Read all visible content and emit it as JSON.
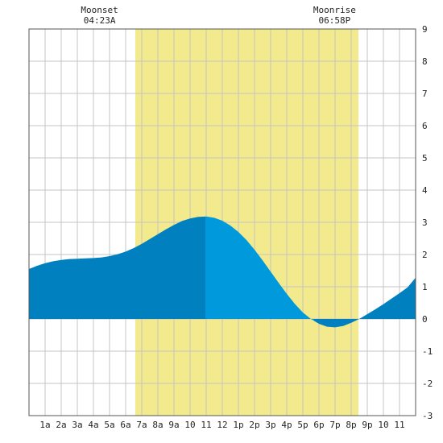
{
  "chart_data": {
    "type": "area",
    "title": "",
    "xlabel": "",
    "ylabel": "",
    "xlim": [
      0,
      24
    ],
    "ylim": [
      -3,
      9
    ],
    "grid": true,
    "y_ticks": [
      -3,
      -2,
      -1,
      0,
      1,
      2,
      3,
      4,
      5,
      6,
      7,
      8,
      9
    ],
    "x_tick_labels": [
      "1a",
      "2a",
      "3a",
      "4a",
      "5a",
      "6a",
      "7a",
      "8a",
      "9a",
      "10",
      "11",
      "12",
      "1p",
      "2p",
      "3p",
      "4p",
      "5p",
      "6p",
      "7p",
      "8p",
      "9p",
      "10",
      "11"
    ],
    "x_tick_positions": [
      1,
      2,
      3,
      4,
      5,
      6,
      7,
      8,
      9,
      10,
      11,
      12,
      13,
      14,
      15,
      16,
      17,
      18,
      19,
      20,
      21,
      22,
      23
    ],
    "daylight": {
      "start": 6.6,
      "end": 20.45,
      "color": "#f2ea8c"
    },
    "highlight": {
      "start": 10.95,
      "end": 17.7,
      "color": "#0099db"
    },
    "tide_color": "#0080bf",
    "series": [
      {
        "x": [
          0,
          0.5,
          1,
          1.5,
          2,
          2.5,
          3,
          3.5,
          4,
          4.5,
          5,
          5.5,
          6,
          6.5,
          7,
          7.5,
          8,
          8.5,
          9,
          9.5,
          10,
          10.5,
          11,
          11.5,
          12,
          12.5,
          13,
          13.5,
          14,
          14.5,
          15,
          15.5,
          16,
          16.5,
          17,
          17.5,
          18,
          18.5,
          19,
          19.5,
          20,
          20.5,
          21,
          21.5,
          22,
          22.5,
          23,
          23.5,
          24
        ],
        "y": [
          1.55,
          1.65,
          1.73,
          1.79,
          1.83,
          1.86,
          1.87,
          1.88,
          1.89,
          1.91,
          1.95,
          2.01,
          2.09,
          2.2,
          2.33,
          2.48,
          2.63,
          2.78,
          2.92,
          3.04,
          3.12,
          3.17,
          3.18,
          3.14,
          3.05,
          2.9,
          2.7,
          2.45,
          2.15,
          1.82,
          1.47,
          1.12,
          0.78,
          0.47,
          0.2,
          0.0,
          -0.15,
          -0.24,
          -0.26,
          -0.22,
          -0.12,
          0.0,
          0.15,
          0.3,
          0.46,
          0.63,
          0.8,
          0.98,
          1.28
        ]
      }
    ],
    "annotations": [
      {
        "label": "Moonset",
        "time": "04:23A",
        "x": 4.38
      },
      {
        "label": "Moonrise",
        "time": "06:58P",
        "x": 18.97
      }
    ]
  }
}
